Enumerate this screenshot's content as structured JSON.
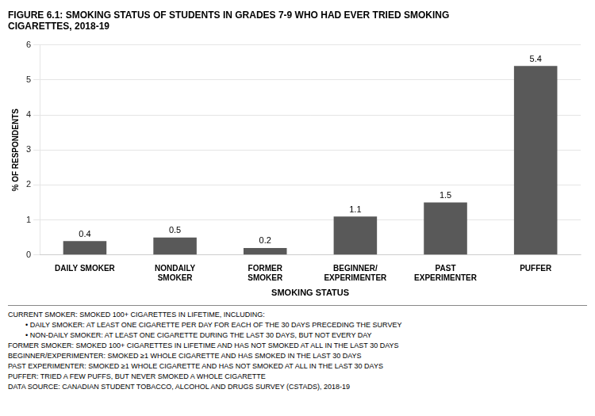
{
  "chart_data": {
    "type": "bar",
    "title": [
      "FIGURE 6.1: SMOKING STATUS OF STUDENTS IN GRADES 7-9 WHO HAD EVER TRIED SMOKING",
      "CIGARETTES, 2018-19"
    ],
    "categories": [
      "DAILY SMOKER",
      "NONDAILY\nSMOKER",
      "FORMER\nSMOKER",
      "BEGINNER/\nEXPERIMENTER",
      "PAST\nEXPERIMENTER",
      "PUFFER"
    ],
    "values": [
      0.4,
      0.5,
      0.2,
      1.1,
      1.5,
      5.4
    ],
    "color": "#595959",
    "xlabel": "SMOKING STATUS",
    "ylabel": "% OF RESPONDENTS",
    "ylim": [
      0,
      6
    ],
    "yticks": [
      0,
      1,
      2,
      3,
      4,
      5,
      6
    ],
    "grid": true,
    "data_labels": true,
    "annotations": [
      "CURRENT SMOKER: SMOKED 100+ CIGARETTES IN LIFETIME, INCLUDING:",
      "•  DAILY SMOKER: AT LEAST ONE CIGARETTE PER DAY FOR EACH OF THE 30 DAYS PRECEDING THE SURVEY",
      "•  NON-DAILY SMOKER: AT LEAST ONE CIGARETTE DURING THE LAST 30 DAYS, BUT NOT EVERY DAY",
      "FORMER SMOKER: SMOKED 100+ CIGARETTES IN LIFETIME AND HAS NOT SMOKED AT ALL IN THE LAST 30 DAYS",
      "BEGINNER/EXPERIMENTER: SMOKED ≥1 WHOLE CIGARETTE AND HAS SMOKED IN THE LAST 30 DAYS",
      "PAST EXPERIMENTER: SMOKED ≥1 WHOLE CIGARETTE AND HAS NOT SMOKED AT ALL IN THE LAST 30 DAYS",
      "PUFFER: TRIED A FEW PUFFS, BUT NEVER SMOKED A WHOLE CIGARETTE",
      "DATA SOURCE: CANADIAN STUDENT TOBACCO, ALCOHOL AND DRUGS SURVEY (CSTADS), 2018-19"
    ]
  }
}
